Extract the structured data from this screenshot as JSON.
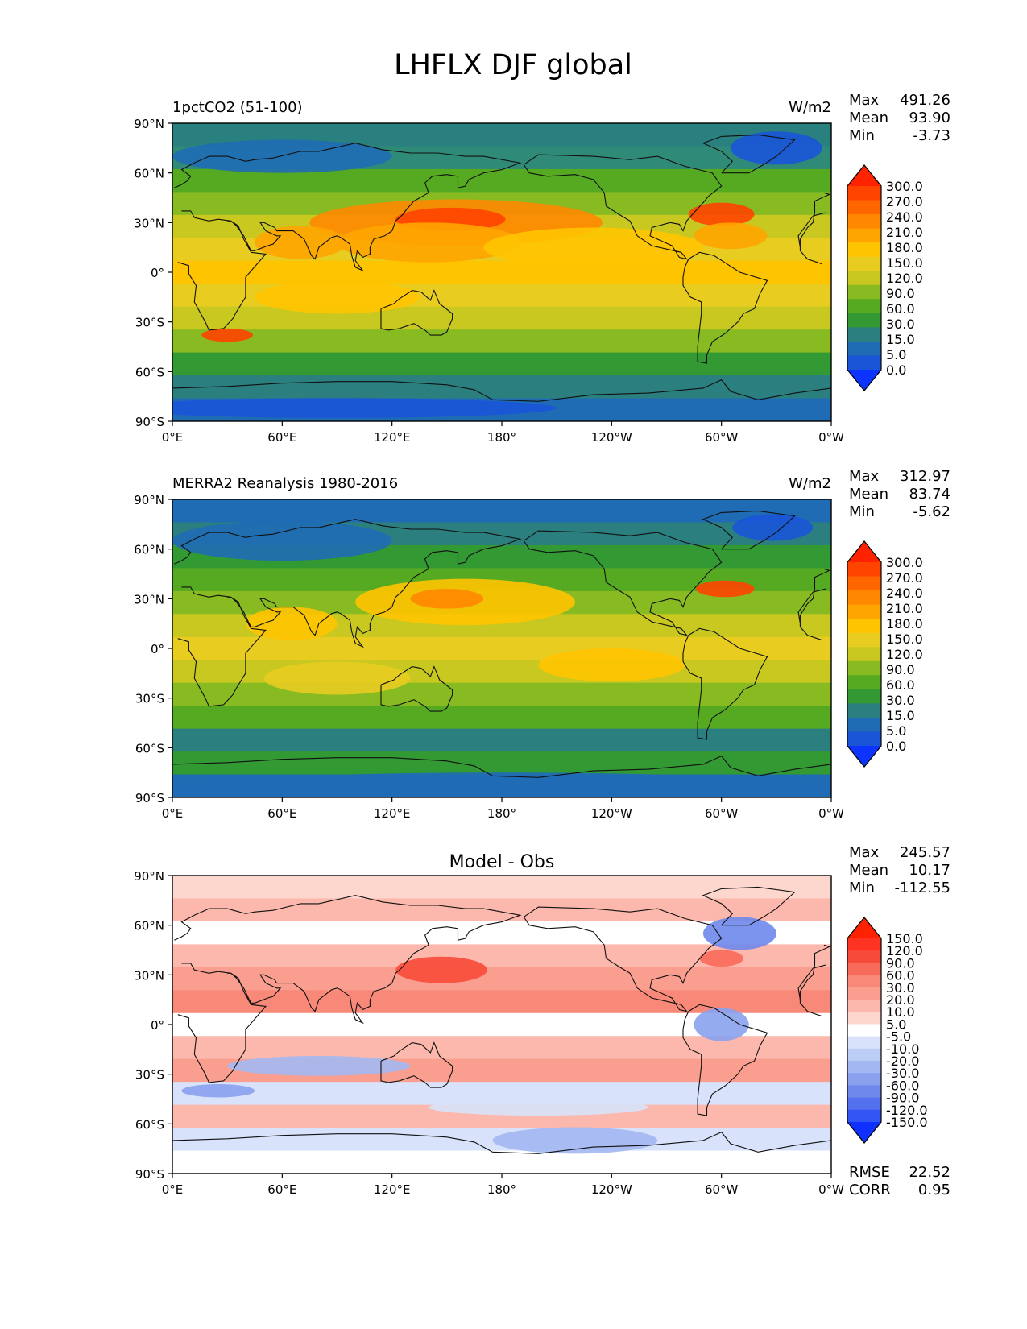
{
  "figure_title": "LHFLX DJF global",
  "chart_data": [
    {
      "type": "heatmap",
      "panel": "model",
      "title": "1pctCO2 (51-100)",
      "units": "W/m2",
      "stats": [
        {
          "label": "Max",
          "value": "491.26"
        },
        {
          "label": "Mean",
          "value": "93.90"
        },
        {
          "label": "Min",
          "value": "-3.73"
        }
      ],
      "xlabel": "",
      "ylabel": "",
      "x_ticks": [
        "0°E",
        "60°E",
        "120°E",
        "180°",
        "120°W",
        "60°W",
        "0°W"
      ],
      "y_ticks": [
        "90°N",
        "60°N",
        "30°N",
        "0°",
        "30°S",
        "60°S",
        "90°S"
      ],
      "xlim": [
        0,
        360
      ],
      "ylim": [
        -90,
        90
      ],
      "colorbar": {
        "levels": [
          "300.0",
          "270.0",
          "240.0",
          "210.0",
          "180.0",
          "150.0",
          "120.0",
          "90.0",
          "60.0",
          "30.0",
          "15.0",
          "5.0",
          "0.0"
        ],
        "colors": [
          "#ff2200",
          "#ff4400",
          "#ff6600",
          "#ff8800",
          "#ffa500",
          "#ffc400",
          "#e8cc20",
          "#c8c820",
          "#88bb22",
          "#55aa22",
          "#339933",
          "#2b7f7f",
          "#1f6cb5",
          "#1a55d8",
          "#0d33ff"
        ]
      }
    },
    {
      "type": "heatmap",
      "panel": "obs",
      "title": "MERRA2 Reanalysis 1980-2016",
      "units": "W/m2",
      "stats": [
        {
          "label": "Max",
          "value": "312.97"
        },
        {
          "label": "Mean",
          "value": "83.74"
        },
        {
          "label": "Min",
          "value": "-5.62"
        }
      ],
      "xlabel": "",
      "ylabel": "",
      "x_ticks": [
        "0°E",
        "60°E",
        "120°E",
        "180°",
        "120°W",
        "60°W",
        "0°W"
      ],
      "y_ticks": [
        "90°N",
        "60°N",
        "30°N",
        "0°",
        "30°S",
        "60°S",
        "90°S"
      ],
      "xlim": [
        0,
        360
      ],
      "ylim": [
        -90,
        90
      ],
      "colorbar": {
        "levels": [
          "300.0",
          "270.0",
          "240.0",
          "210.0",
          "180.0",
          "150.0",
          "120.0",
          "90.0",
          "60.0",
          "30.0",
          "15.0",
          "5.0",
          "0.0"
        ],
        "colors": [
          "#ff2200",
          "#ff4400",
          "#ff6600",
          "#ff8800",
          "#ffa500",
          "#ffc400",
          "#e8cc20",
          "#c8c820",
          "#88bb22",
          "#55aa22",
          "#339933",
          "#2b7f7f",
          "#1f6cb5",
          "#1a55d8",
          "#0d33ff"
        ]
      }
    },
    {
      "type": "heatmap",
      "panel": "diff",
      "title": "Model - Obs",
      "units": "",
      "stats": [
        {
          "label": "Max",
          "value": "245.57"
        },
        {
          "label": "Mean",
          "value": "10.17"
        },
        {
          "label": "Min",
          "value": "-112.55"
        }
      ],
      "extra_stats": [
        {
          "label": "RMSE",
          "value": "22.52"
        },
        {
          "label": "CORR",
          "value": "0.95"
        }
      ],
      "xlabel": "",
      "ylabel": "",
      "x_ticks": [
        "0°E",
        "60°E",
        "120°E",
        "180°",
        "120°W",
        "60°W",
        "0°W"
      ],
      "y_ticks": [
        "90°N",
        "60°N",
        "30°N",
        "0°",
        "30°S",
        "60°S",
        "90°S"
      ],
      "xlim": [
        0,
        360
      ],
      "ylim": [
        -90,
        90
      ],
      "colorbar": {
        "levels": [
          "150.0",
          "120.0",
          "90.0",
          "60.0",
          "30.0",
          "20.0",
          "10.0",
          "5.0",
          "-5.0",
          "-10.0",
          "-20.0",
          "-30.0",
          "-60.0",
          "-90.0",
          "-120.0",
          "-150.0"
        ],
        "colors": [
          "#ff2200",
          "#ff3322",
          "#f84a3a",
          "#f86a5a",
          "#f88878",
          "#fa9e90",
          "#fcb8ac",
          "#fdd6ce",
          "#ffffff",
          "#d8e2fa",
          "#bccdf6",
          "#a3b8f2",
          "#8aa2ee",
          "#6f88ec",
          "#5370ee",
          "#3355f5",
          "#1030ff"
        ]
      }
    }
  ]
}
